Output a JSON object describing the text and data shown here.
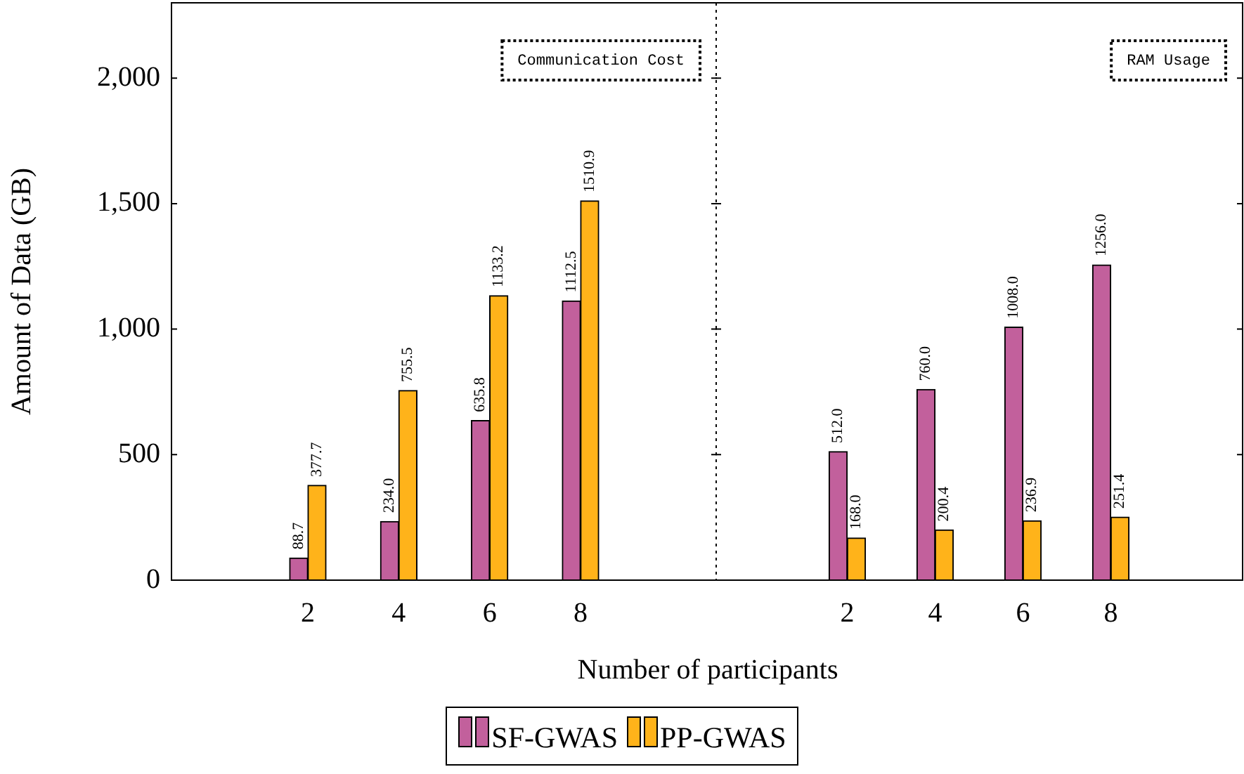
{
  "chart_data": [
    {
      "type": "bar",
      "annotations": [
        "Communication Cost"
      ],
      "xlabel": "Number of participants",
      "ylabel": "Amount of Data (GB)",
      "categories": [
        null,
        "2",
        "4",
        "6",
        "8",
        null
      ],
      "series": [
        {
          "name": "SF-GWAS",
          "color": "#c2609c",
          "values": [
            null,
            88.7,
            234.0,
            635.8,
            1112.5,
            null
          ],
          "value_labels": [
            null,
            "88.7",
            "234.0",
            "635.8",
            "1112.5",
            null
          ]
        },
        {
          "name": "PP-GWAS",
          "color": "#ffb31a",
          "values": [
            null,
            377.7,
            755.5,
            1133.2,
            1510.9,
            null
          ],
          "value_labels": [
            null,
            "377.7",
            "755.5",
            "1133.2",
            "1510.9",
            null
          ]
        }
      ],
      "ylim": [
        0,
        2300
      ],
      "yticks": [
        0,
        500,
        {
          "value": 1000,
          "label": "1,000"
        },
        {
          "value": 1500,
          "label": "1,500"
        },
        {
          "value": 2000,
          "label": "2,000"
        }
      ],
      "grid": false,
      "legend": "bottom"
    },
    {
      "type": "bar",
      "annotations": [
        "RAM Usage"
      ],
      "categories": [
        null,
        "2",
        "4",
        "6",
        "8",
        null
      ],
      "series": [
        {
          "color": "#c2609c",
          "values": [
            null,
            512.0,
            760.0,
            1008.0,
            1256.0,
            null
          ],
          "value_labels": [
            null,
            "512.0",
            "760.0",
            "1008.0",
            "1256.0",
            null
          ]
        },
        {
          "color": "#ffb31a",
          "values": [
            null,
            168.0,
            200.4,
            236.9,
            251.4,
            null
          ],
          "value_labels": [
            null,
            "168.0",
            "200.4",
            "236.9",
            "251.4",
            null
          ]
        }
      ],
      "ylim": [
        0,
        2300
      ],
      "yticks": [
        0,
        500,
        1000,
        1500,
        2000
      ],
      "grid": false,
      "tick_labels": "x"
    }
  ]
}
